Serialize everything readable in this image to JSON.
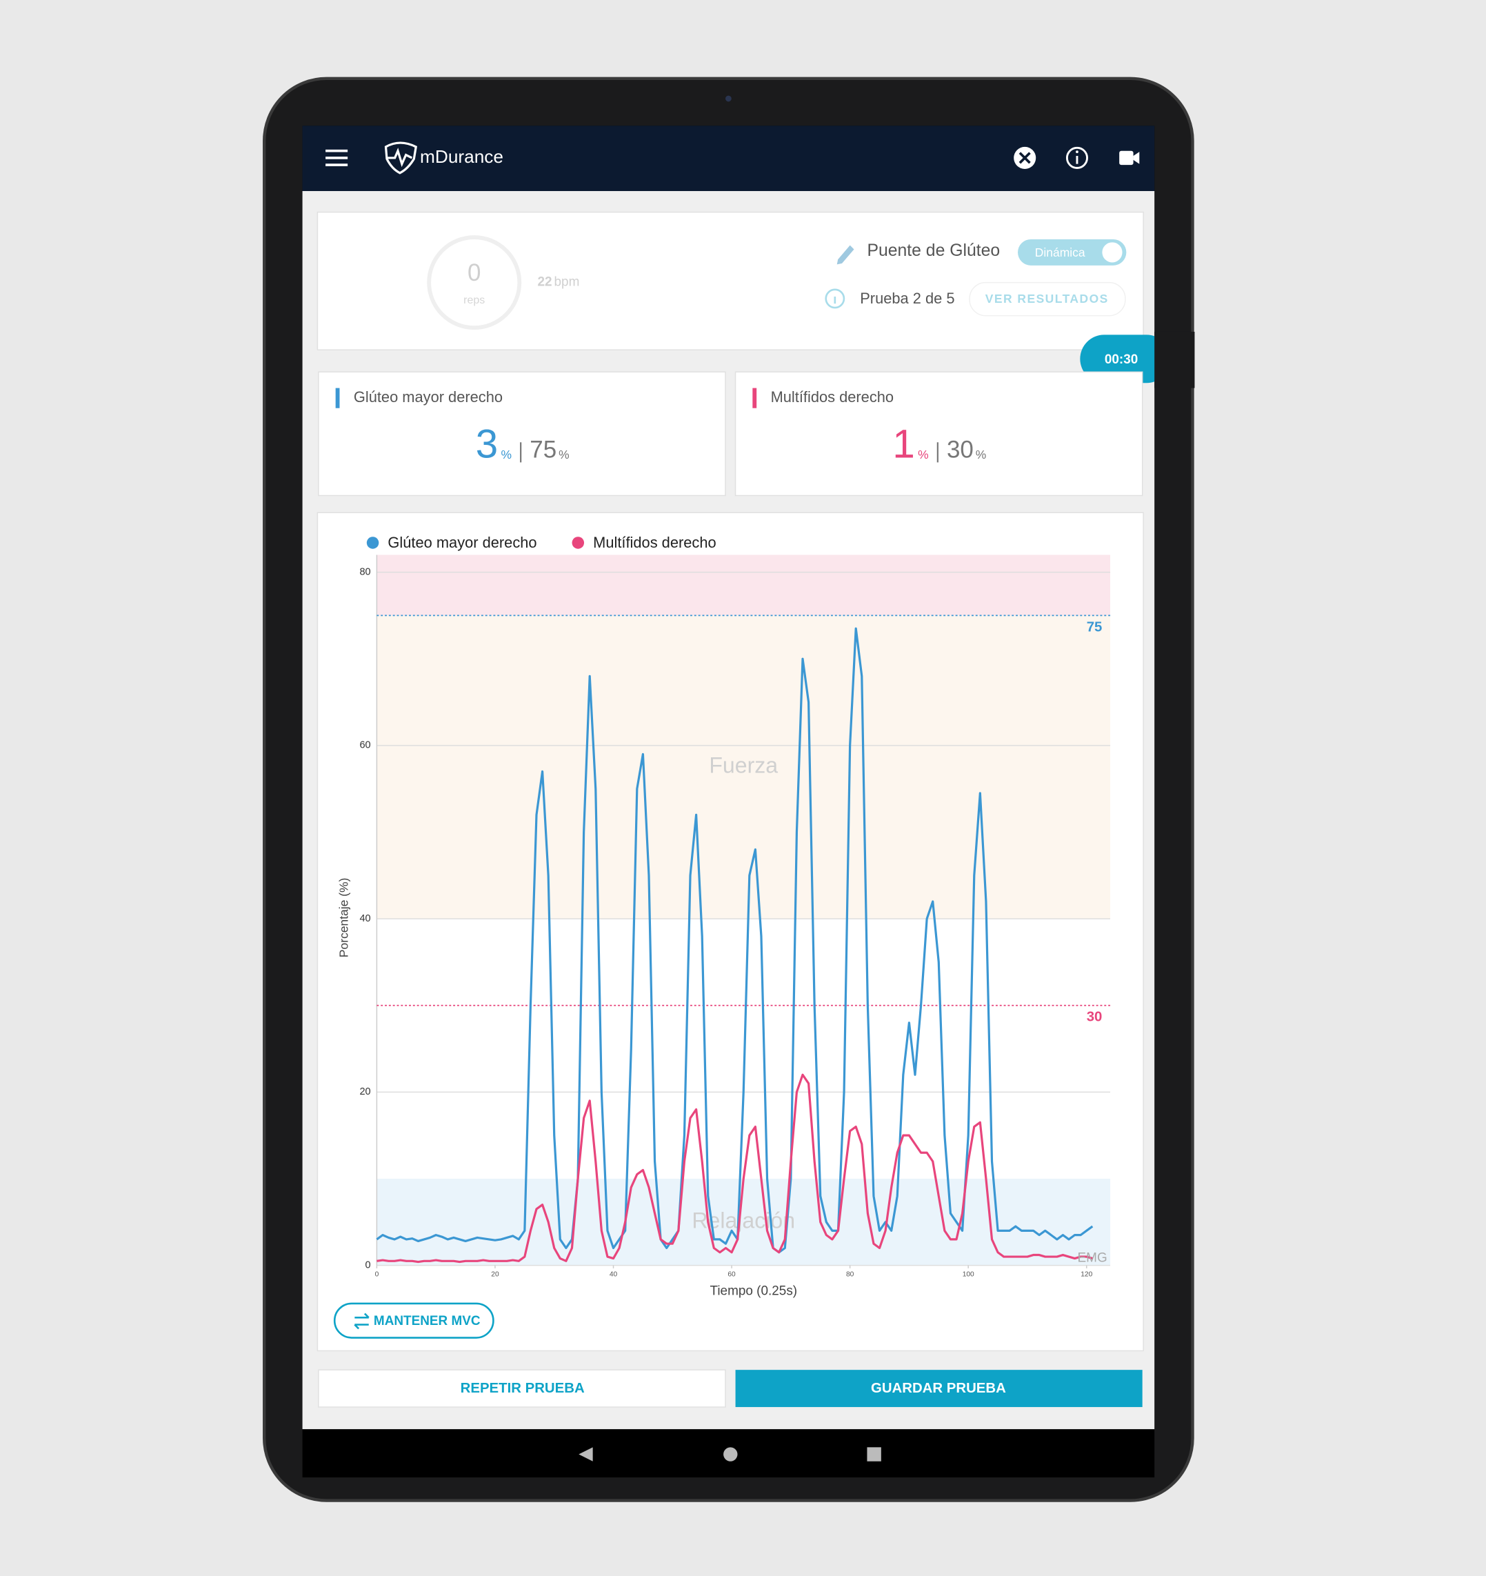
{
  "app_bar": {
    "title": "mDurance"
  },
  "exercise": {
    "reps": 0,
    "reps_label": "reps",
    "rate": 22,
    "rate_unit": "bpm",
    "name": "Puente de Glúteo",
    "mode": "Dinámica",
    "progress": "Prueba 2 de 5",
    "results_button": "VER RESULTADOS",
    "timer": "00:30"
  },
  "muscles": [
    {
      "name": "Glúteo mayor derecho",
      "value": 3,
      "unit": "%",
      "target": 75,
      "target_unit": "%",
      "color": "#3b97d3"
    },
    {
      "name": "Multífidos derecho",
      "value": 1,
      "unit": "%",
      "target": 30,
      "target_unit": "%",
      "color": "#e8457c"
    }
  ],
  "chart_data": {
    "type": "line",
    "x_label": "Tiempo (0.25s)",
    "y_label": "Porcentaje (%)",
    "annotation": "EMG",
    "xlim": [
      0,
      124
    ],
    "xticks": [
      0,
      20,
      40,
      60,
      80,
      100,
      120
    ],
    "ylim": [
      0,
      82
    ],
    "yticks": [
      0,
      20,
      40,
      60,
      80
    ],
    "grid": true,
    "zones": [
      {
        "label": "Relajación",
        "from": 0,
        "to": 10,
        "color": "#eaf4fb"
      },
      {
        "label": "Fuerza",
        "from": 40,
        "to": 75,
        "color": "#fdf6ee"
      },
      {
        "from": 75,
        "to": 82,
        "color": "#fbe6ec"
      }
    ],
    "thresholds": [
      {
        "value": 75,
        "color": "#3b97d3"
      },
      {
        "value": 30,
        "color": "#e8457c"
      }
    ],
    "x": [
      0,
      1,
      2,
      3,
      4,
      5,
      6,
      7,
      8,
      9,
      10,
      11,
      12,
      13,
      14,
      15,
      16,
      17,
      18,
      19,
      20,
      21,
      22,
      23,
      24,
      25,
      26,
      27,
      28,
      29,
      30,
      31,
      32,
      33,
      34,
      35,
      36,
      37,
      38,
      39,
      40,
      41,
      42,
      43,
      44,
      45,
      46,
      47,
      48,
      49,
      50,
      51,
      52,
      53,
      54,
      55,
      56,
      57,
      58,
      59,
      60,
      61,
      62,
      63,
      64,
      65,
      66,
      67,
      68,
      69,
      70,
      71,
      72,
      73,
      74,
      75,
      76,
      77,
      78,
      79,
      80,
      81,
      82,
      83,
      84,
      85,
      86,
      87,
      88,
      89,
      90,
      91,
      92,
      93,
      94,
      95,
      96,
      97,
      98,
      99,
      100,
      101,
      102,
      103,
      104,
      105,
      106,
      107,
      108,
      109,
      110,
      111,
      112,
      113,
      114,
      115,
      116,
      117,
      118,
      119,
      120,
      121
    ],
    "series": [
      {
        "name": "Glúteo mayor derecho",
        "color": "#3b97d3",
        "values": [
          3,
          3.5,
          3.2,
          3,
          3.3,
          3,
          3.1,
          2.8,
          3,
          3.2,
          3.5,
          3.3,
          3,
          3.2,
          3,
          2.8,
          3,
          3.2,
          3.1,
          3,
          2.9,
          3,
          3.2,
          3.4,
          3,
          4,
          30,
          52,
          57,
          45,
          15,
          3,
          2,
          3,
          10,
          50,
          68,
          55,
          20,
          4,
          2,
          3,
          4,
          25,
          55,
          59,
          45,
          12,
          3,
          2,
          3,
          4,
          15,
          45,
          52,
          38,
          8,
          3,
          3,
          2.5,
          4,
          3,
          20,
          45,
          48,
          38,
          10,
          2,
          1.5,
          2,
          10,
          50,
          70,
          65,
          30,
          8,
          5,
          4,
          4,
          20,
          60,
          73.5,
          68,
          30,
          8,
          4,
          5,
          4,
          8,
          22,
          28,
          22,
          30,
          40,
          42,
          35,
          15,
          6,
          5,
          4,
          15,
          45,
          54.5,
          42,
          12,
          4,
          4,
          4,
          4.5,
          4,
          4,
          4,
          3.5,
          4,
          3.5,
          3,
          3.5,
          3,
          3.5,
          3.5,
          4,
          4.5
        ]
      },
      {
        "name": "Multífidos derecho",
        "color": "#e8457c",
        "values": [
          0.5,
          0.6,
          0.5,
          0.5,
          0.6,
          0.5,
          0.5,
          0.4,
          0.5,
          0.5,
          0.6,
          0.5,
          0.5,
          0.5,
          0.4,
          0.5,
          0.5,
          0.5,
          0.6,
          0.5,
          0.5,
          0.5,
          0.5,
          0.6,
          0.5,
          1,
          4,
          6.5,
          7,
          5,
          2,
          0.8,
          0.5,
          2,
          10,
          17,
          19,
          12,
          4,
          1,
          0.8,
          2,
          5,
          9,
          10.5,
          11,
          9,
          6,
          3,
          2.5,
          2.5,
          4,
          12,
          17,
          18,
          12,
          5,
          2,
          1.5,
          2,
          1.5,
          3,
          10,
          15,
          16,
          10,
          4,
          2,
          1.5,
          3,
          12,
          20,
          22,
          21,
          12,
          5,
          3.5,
          3,
          4,
          10,
          15.5,
          16,
          14,
          6,
          2.5,
          2,
          4,
          9,
          13,
          15,
          15,
          14,
          13,
          13,
          12,
          8,
          4,
          3,
          3,
          6,
          12,
          16,
          16.5,
          10,
          3,
          1.5,
          1,
          1,
          1,
          1,
          1,
          1.2,
          1.2,
          1,
          1,
          1,
          1.2,
          1,
          0.8,
          1,
          1,
          0.8
        ]
      }
    ]
  },
  "actions": {
    "keep_mvc": "MANTENER MVC",
    "repeat": "REPETIR PRUEBA",
    "save": "GUARDAR PRUEBA"
  }
}
